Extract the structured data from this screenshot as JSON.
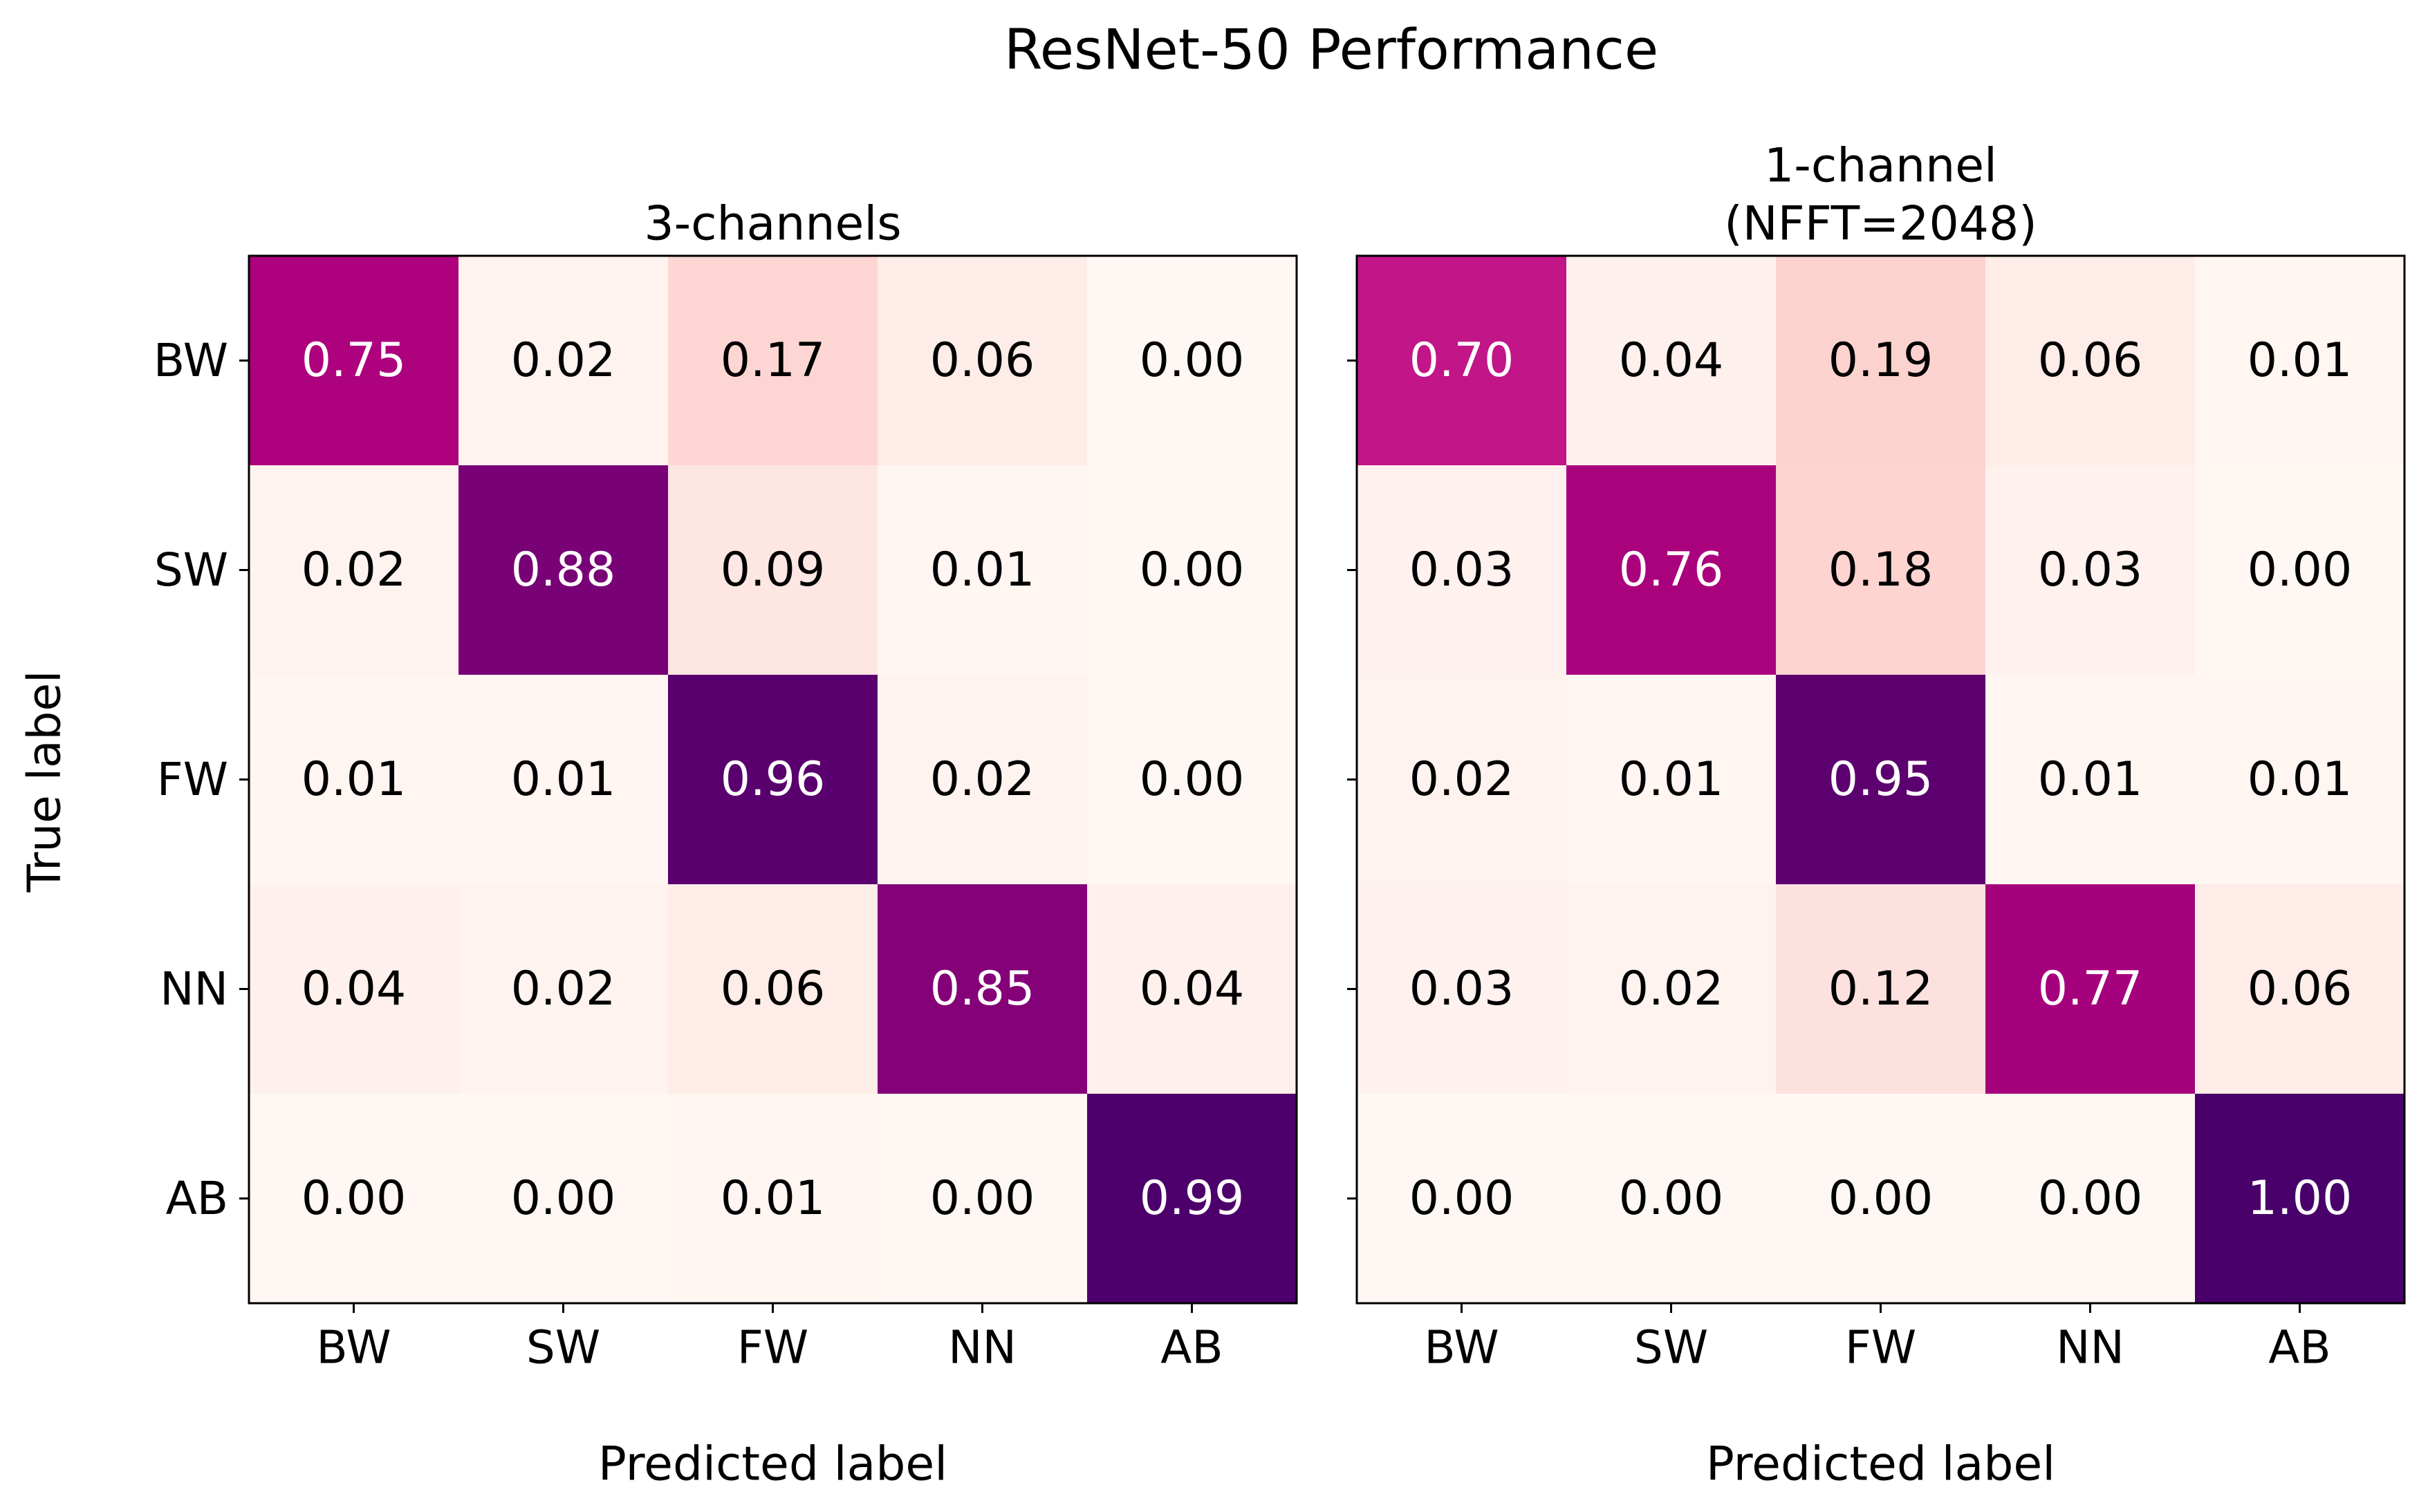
{
  "figure": {
    "suptitle": "ResNet-50 Performance",
    "ylabel": "True label",
    "colormap": {
      "name": "RdPu",
      "stops": [
        {
          "v": 0.0,
          "color": "#fff7f3"
        },
        {
          "v": 0.125,
          "color": "#fde0dd"
        },
        {
          "v": 0.25,
          "color": "#fcc5c0"
        },
        {
          "v": 0.375,
          "color": "#fa9fb5"
        },
        {
          "v": 0.5,
          "color": "#f768a1"
        },
        {
          "v": 0.625,
          "color": "#dd3497"
        },
        {
          "v": 0.75,
          "color": "#ae017e"
        },
        {
          "v": 0.875,
          "color": "#7a0177"
        },
        {
          "v": 1.0,
          "color": "#49006a"
        }
      ],
      "text_dark": "#000000",
      "text_light": "#ffffff"
    }
  },
  "chart_data": [
    {
      "type": "heatmap",
      "title": "3-channels",
      "xlabel": "Predicted label",
      "ylabel": "True label",
      "x_categories": [
        "BW",
        "SW",
        "FW",
        "NN",
        "AB"
      ],
      "y_categories": [
        "BW",
        "SW",
        "FW",
        "NN",
        "AB"
      ],
      "value_range": [
        0,
        1
      ],
      "values": [
        [
          0.75,
          0.02,
          0.17,
          0.06,
          0.0
        ],
        [
          0.02,
          0.88,
          0.09,
          0.01,
          0.0
        ],
        [
          0.01,
          0.01,
          0.96,
          0.02,
          0.0
        ],
        [
          0.04,
          0.02,
          0.06,
          0.85,
          0.04
        ],
        [
          0.0,
          0.0,
          0.01,
          0.0,
          0.99
        ]
      ],
      "labels": [
        [
          "0.75",
          "0.02",
          "0.17",
          "0.06",
          "0.00"
        ],
        [
          "0.02",
          "0.88",
          "0.09",
          "0.01",
          "0.00"
        ],
        [
          "0.01",
          "0.01",
          "0.96",
          "0.02",
          "0.00"
        ],
        [
          "0.04",
          "0.02",
          "0.06",
          "0.85",
          "0.04"
        ],
        [
          "0.00",
          "0.00",
          "0.01",
          "0.00",
          "0.99"
        ]
      ]
    },
    {
      "type": "heatmap",
      "title": [
        "1-channel",
        "(NFFT=2048)"
      ],
      "xlabel": "Predicted label",
      "ylabel": "",
      "x_categories": [
        "BW",
        "SW",
        "FW",
        "NN",
        "AB"
      ],
      "y_categories": [
        "BW",
        "SW",
        "FW",
        "NN",
        "AB"
      ],
      "value_range": [
        0,
        1
      ],
      "values": [
        [
          0.7,
          0.04,
          0.19,
          0.06,
          0.01
        ],
        [
          0.03,
          0.76,
          0.18,
          0.03,
          0.0
        ],
        [
          0.02,
          0.01,
          0.95,
          0.01,
          0.01
        ],
        [
          0.03,
          0.02,
          0.12,
          0.77,
          0.06
        ],
        [
          0.0,
          0.0,
          0.0,
          0.0,
          1.0
        ]
      ],
      "labels": [
        [
          "0.70",
          "0.04",
          "0.19",
          "0.06",
          "0.01"
        ],
        [
          "0.03",
          "0.76",
          "0.18",
          "0.03",
          "0.00"
        ],
        [
          "0.02",
          "0.01",
          "0.95",
          "0.01",
          "0.01"
        ],
        [
          "0.03",
          "0.02",
          "0.12",
          "0.77",
          "0.06"
        ],
        [
          "0.00",
          "0.00",
          "0.00",
          "0.00",
          "1.00"
        ]
      ]
    }
  ]
}
